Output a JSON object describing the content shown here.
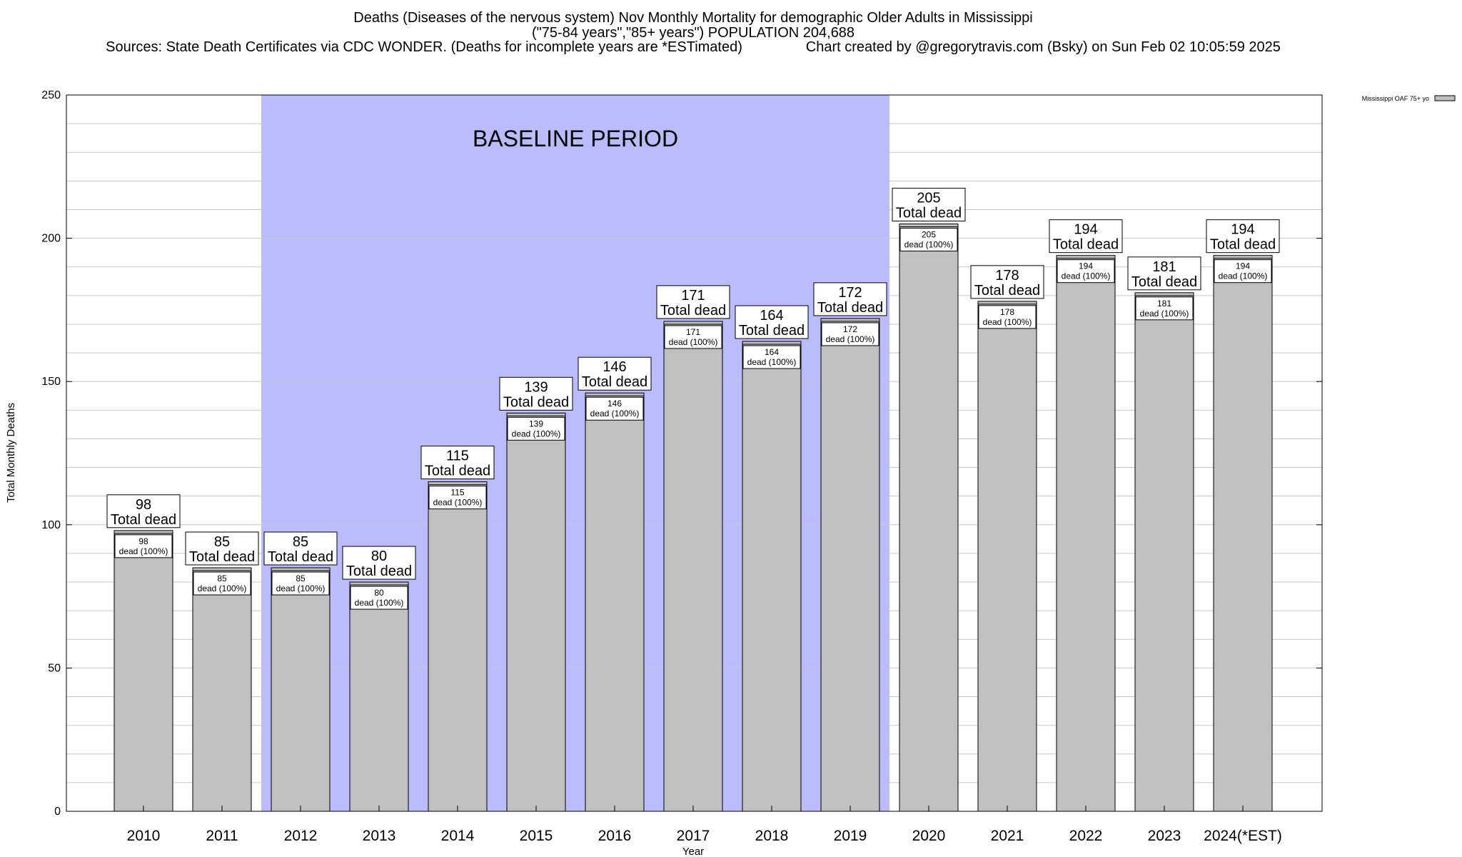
{
  "title": {
    "line1": "Deaths (Diseases of the nervous system) Nov Monthly Mortality for demographic Older Adults in Mississippi",
    "line2": "(\"75-84 years\",\"85+ years\") POPULATION 204,688",
    "line3": "Sources: State Death Certificates via CDC WONDER. (Deaths for incomplete years are *ESTimated)                Chart created by @gregorytravis.com (Bsky) on Sun Feb 02 10:05:59 2025"
  },
  "colors": {
    "bar": "#c0c0c0",
    "baseline_band": "#bbbbff",
    "grid": "#c8c8c8"
  },
  "chart_data": {
    "type": "bar",
    "xlabel": "Year",
    "ylabel": "Total Monthly Deaths",
    "ylim": [
      0,
      250
    ],
    "yticks": [
      0,
      50,
      100,
      150,
      200,
      250
    ],
    "grid": true,
    "legend_placement": "top-right",
    "categories": [
      "2010",
      "2011",
      "2012",
      "2013",
      "2014",
      "2015",
      "2016",
      "2017",
      "2018",
      "2019",
      "2020",
      "2021",
      "2022",
      "2023",
      "2024(*EST)"
    ],
    "series": [
      {
        "name": "Mississippi OAF 75+ yo",
        "values": [
          98,
          85,
          85,
          80,
          115,
          139,
          146,
          171,
          164,
          172,
          205,
          178,
          194,
          181,
          194
        ]
      }
    ],
    "baseline_band": {
      "label": "BASELINE PERIOD",
      "from_category": "2012",
      "to_category": "2019"
    },
    "top_label_suffix": "Total dead",
    "inner_label_suffix": "dead (100%)"
  }
}
